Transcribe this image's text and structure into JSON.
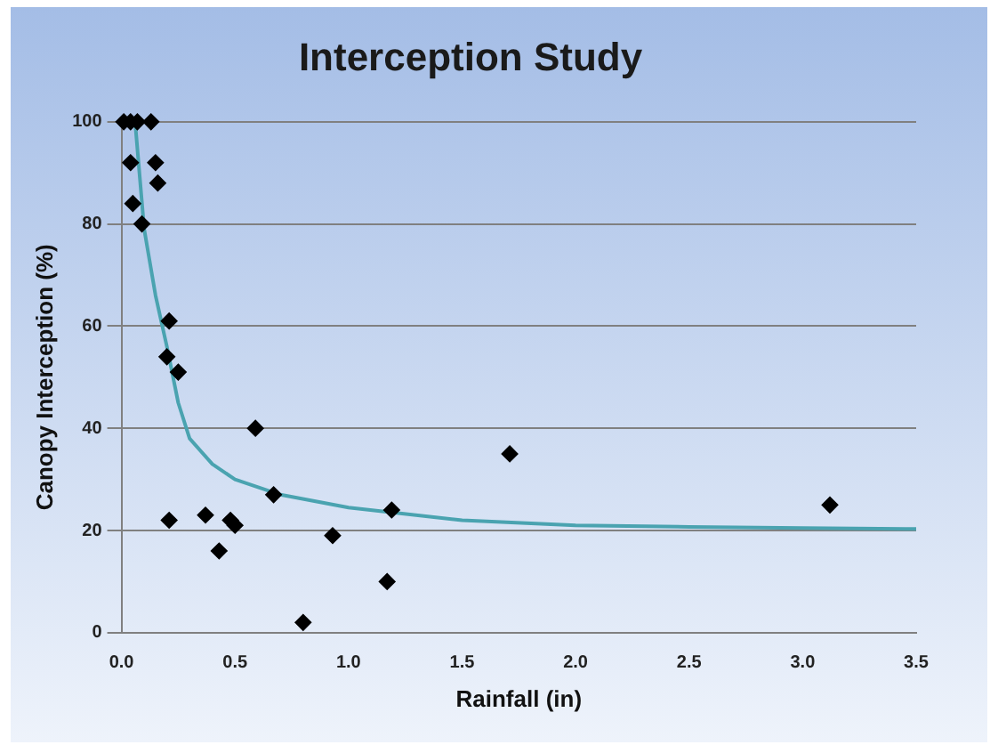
{
  "chart_data": {
    "type": "scatter",
    "title": "Interception Study",
    "xlabel": "Rainfall (in)",
    "ylabel": "Canopy Interception (%)",
    "xlim": [
      0,
      3.5
    ],
    "xticks": [
      {
        "value": 0,
        "label": "0.0"
      },
      {
        "value": 0.5,
        "label": "0.5"
      },
      {
        "value": 1,
        "label": "1.0"
      },
      {
        "value": 1.5,
        "label": "1.5"
      },
      {
        "value": 2,
        "label": "2.0"
      },
      {
        "value": 2.5,
        "label": "2.5"
      },
      {
        "value": 3,
        "label": "3.0"
      },
      {
        "value": 3.5,
        "label": "3.5"
      }
    ],
    "ylim": [
      0,
      100
    ],
    "yticks": [
      0,
      20,
      40,
      60,
      80,
      100
    ],
    "grid": "y",
    "legend": false,
    "series": [
      {
        "color": "#000000",
        "marker": "diamond",
        "x": [
          0.01,
          0.04,
          0.07,
          0.13,
          0.04,
          0.15,
          0.16,
          0.05,
          0.09,
          0.21,
          0.2,
          0.25,
          0.21,
          0.37,
          0.43,
          0.48,
          0.5,
          0.59,
          0.67,
          0.8,
          0.93,
          1.17,
          1.19,
          1.71,
          3.12
        ],
        "values": [
          100,
          100,
          100,
          100,
          92,
          92,
          88,
          84,
          80,
          61,
          54,
          51,
          22,
          23,
          16,
          22,
          21,
          40,
          27,
          2,
          19,
          10,
          24,
          35,
          25
        ]
      },
      {
        "type": "line",
        "color": "#4aa3b0",
        "marker": "none",
        "x": [
          0.06,
          0.1,
          0.15,
          0.2,
          0.25,
          0.3,
          0.4,
          0.5,
          0.7,
          1.0,
          1.5,
          2.0,
          2.5,
          3.0,
          3.5
        ],
        "values": [
          100,
          79,
          66,
          56,
          45,
          38,
          33,
          30,
          27,
          24.5,
          22,
          21,
          20.7,
          20.5,
          20.3
        ]
      }
    ]
  }
}
